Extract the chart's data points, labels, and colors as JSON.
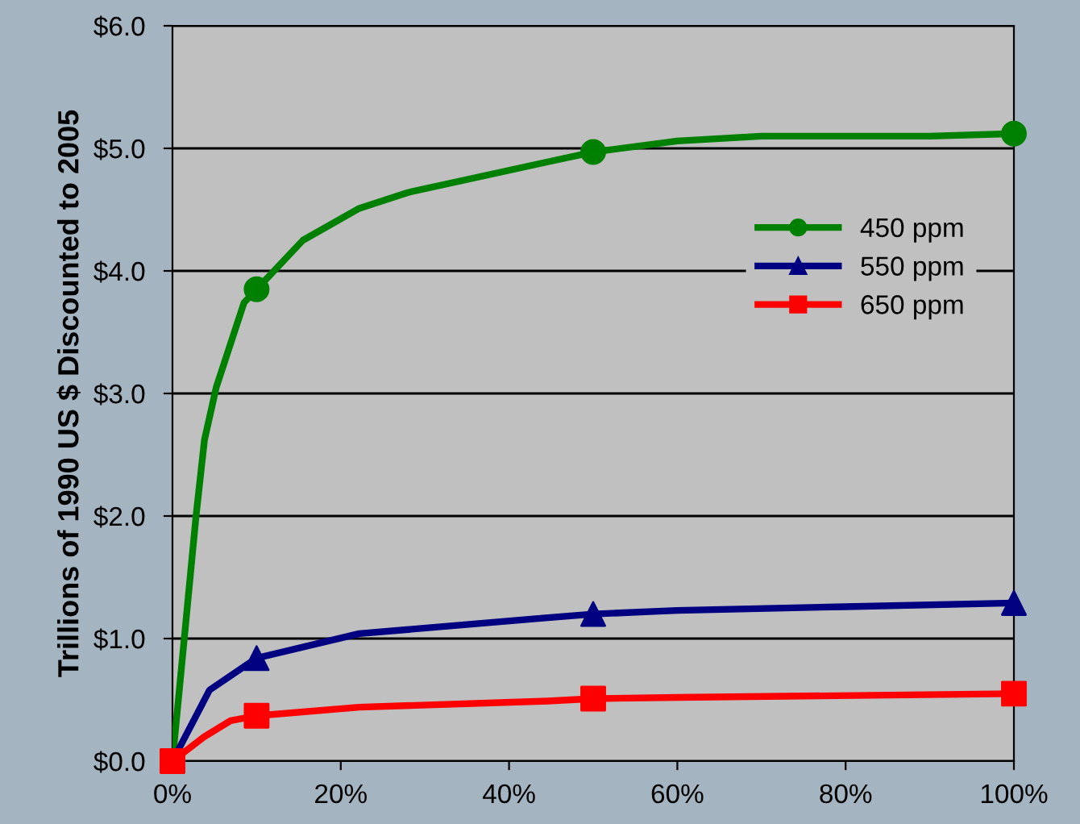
{
  "chart_data": {
    "type": "line",
    "ylabel": "Trillions of 1990 US $ Discounted to 2005",
    "xlim": [
      0,
      100
    ],
    "xticks": [
      {
        "value": 0,
        "label": "0%"
      },
      {
        "value": 20,
        "label": "20%"
      },
      {
        "value": 40,
        "label": "40%"
      },
      {
        "value": 60,
        "label": "60%"
      },
      {
        "value": 80,
        "label": "80%"
      },
      {
        "value": 100,
        "label": "100%"
      }
    ],
    "ylim": [
      0,
      6
    ],
    "yticks": [
      {
        "value": 0,
        "label": "$0.0"
      },
      {
        "value": 1,
        "label": "$1.0"
      },
      {
        "value": 2,
        "label": "$2.0"
      },
      {
        "value": 3,
        "label": "$3.0"
      },
      {
        "value": 4,
        "label": "$4.0"
      },
      {
        "value": 5,
        "label": "$5.0"
      },
      {
        "value": 6,
        "label": "$6.0"
      }
    ],
    "grid": "y",
    "legend": "right",
    "line_style": "solid",
    "series": [
      {
        "color": "#008000",
        "x": [
          0,
          2.8,
          3.8,
          5.2,
          8.5,
          10,
          15.5,
          22.2,
          28,
          44.6,
          50,
          60,
          70,
          90,
          100
        ],
        "values": [
          0,
          2.0,
          2.62,
          3.05,
          3.74,
          3.85,
          4.25,
          4.51,
          4.64,
          4.89,
          4.97,
          5.06,
          5.1,
          5.1,
          5.12
        ]
      },
      {
        "type": "scatter",
        "name": "450 ppm",
        "color": "#008000",
        "marker": "circle",
        "x": [
          10,
          50,
          100
        ],
        "values": [
          3.85,
          4.97,
          5.12
        ]
      },
      {
        "color": "#000080",
        "x": [
          0,
          4.4,
          10,
          22.2,
          44.6,
          50,
          60,
          80,
          100
        ],
        "values": [
          0,
          0.58,
          0.84,
          1.04,
          1.17,
          1.2,
          1.23,
          1.26,
          1.29
        ]
      },
      {
        "type": "scatter",
        "name": "550 ppm",
        "color": "#000080",
        "marker": "triangle",
        "x": [
          10,
          50,
          100
        ],
        "values": [
          0.84,
          1.2,
          1.29
        ]
      },
      {
        "color": "#ff0000",
        "x": [
          0,
          3.8,
          6.9,
          10,
          22.2,
          44.6,
          50,
          60,
          100
        ],
        "values": [
          0,
          0.2,
          0.33,
          0.37,
          0.44,
          0.49,
          0.51,
          0.52,
          0.55
        ]
      },
      {
        "type": "scatter",
        "name": "650 ppm",
        "color": "#ff0000",
        "marker": "square",
        "x": [
          0,
          10,
          50,
          100
        ],
        "values": [
          0,
          0.37,
          0.51,
          0.55
        ]
      }
    ]
  }
}
